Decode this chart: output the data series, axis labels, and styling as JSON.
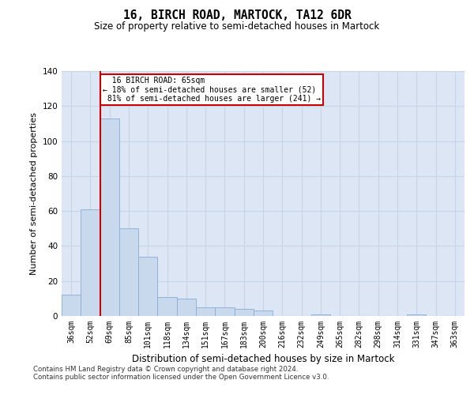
{
  "title": "16, BIRCH ROAD, MARTOCK, TA12 6DR",
  "subtitle": "Size of property relative to semi-detached houses in Martock",
  "xlabel": "Distribution of semi-detached houses by size in Martock",
  "ylabel": "Number of semi-detached properties",
  "categories": [
    "36sqm",
    "52sqm",
    "69sqm",
    "85sqm",
    "101sqm",
    "118sqm",
    "134sqm",
    "151sqm",
    "167sqm",
    "183sqm",
    "200sqm",
    "216sqm",
    "232sqm",
    "249sqm",
    "265sqm",
    "282sqm",
    "298sqm",
    "314sqm",
    "331sqm",
    "347sqm",
    "363sqm"
  ],
  "values": [
    12,
    61,
    113,
    50,
    34,
    11,
    10,
    5,
    5,
    4,
    3,
    0,
    0,
    1,
    0,
    0,
    0,
    0,
    1,
    0,
    0
  ],
  "bar_color": "#c8d9ee",
  "bar_edge_color": "#8aadd4",
  "vline_color": "#cc0000",
  "vline_x_index": 1.5,
  "ylim": [
    0,
    140
  ],
  "yticks": [
    0,
    20,
    40,
    60,
    80,
    100,
    120,
    140
  ],
  "grid_color": "#c8d4e8",
  "bg_color": "#dce6f5",
  "property_label": "16 BIRCH ROAD: 65sqm",
  "pct_smaller": 18,
  "count_smaller": 52,
  "pct_larger": 81,
  "count_larger": 241,
  "annotation_box_edge": "#cc0000",
  "footnote1": "Contains HM Land Registry data © Crown copyright and database right 2024.",
  "footnote2": "Contains public sector information licensed under the Open Government Licence v3.0."
}
